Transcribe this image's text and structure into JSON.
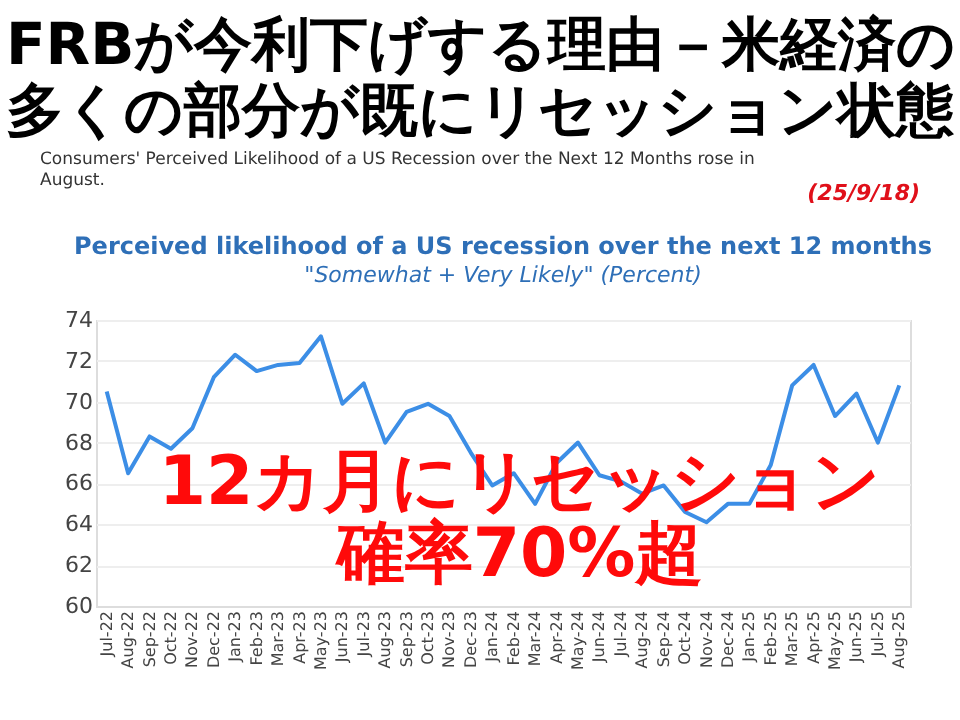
{
  "chart_data": {
    "type": "line",
    "title": "FRBが今利下げする理由－米経済の多くの部分が既にリセッション状態",
    "subtitle": "Perceived likelihood of a US recession over the next 12 months",
    "annotations": [
      "Consumers' Perceived Likelihood of a US Recession over the Next 12 Months rose in August.",
      "(25/9/18)",
      "\"Somewhat + Very Likely\" (Percent)",
      "12カ月にリセッション",
      "確率70%超"
    ],
    "categories": [
      "Jul-22",
      "Aug-22",
      "Sep-22",
      "Oct-22",
      "Nov-22",
      "Dec-22",
      "Jan-23",
      "Feb-23",
      "Mar-23",
      "Apr-23",
      "May-23",
      "Jun-23",
      "Jul-23",
      "Aug-23",
      "Sep-23",
      "Oct-23",
      "Nov-23",
      "Dec-23",
      "Jan-24",
      "Feb-24",
      "Mar-24",
      "Apr-24",
      "May-24",
      "Jun-24",
      "Jul-24",
      "Aug-24",
      "Sep-24",
      "Oct-24",
      "Nov-24",
      "Dec-24",
      "Jan-25",
      "Feb-25",
      "Mar-25",
      "Apr-25",
      "May-25",
      "Jun-25",
      "Jul-25",
      "Aug-25"
    ],
    "series": [
      {
        "color": "#3c8ee6",
        "values": [
          70.5,
          66.5,
          68.3,
          67.7,
          68.7,
          71.2,
          72.3,
          71.5,
          71.8,
          71.9,
          73.2,
          69.9,
          70.9,
          68.0,
          69.5,
          69.9,
          69.3,
          67.5,
          65.9,
          66.5,
          65.0,
          67.0,
          68.0,
          66.4,
          66.1,
          65.5,
          65.9,
          64.6,
          64.1,
          65.0,
          65.0,
          66.9,
          70.8,
          71.8,
          69.3,
          70.4,
          68.0,
          70.8
        ]
      }
    ],
    "ylim": [
      60,
      74
    ],
    "yticks": [
      60,
      62,
      64,
      66,
      68,
      70,
      72,
      74
    ],
    "grid": "y",
    "marker": "none",
    "line_style": "solid"
  }
}
